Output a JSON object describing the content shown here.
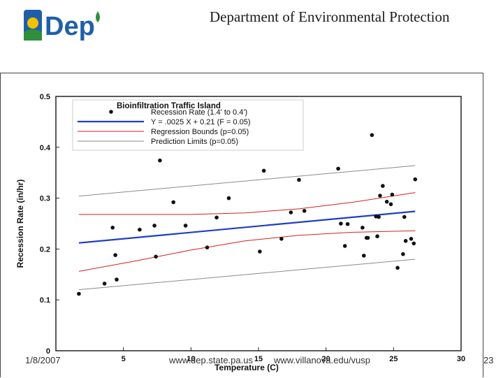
{
  "header": {
    "logo_text": "Dep",
    "title": "Department of Environmental Protection"
  },
  "footer": {
    "date": "1/8/2007",
    "url_left": "www.dep.state.pa.us",
    "url_right": "www.villanova.edu/vusp",
    "page_number": "23"
  },
  "colors": {
    "logo_blue": "#1f5fa8",
    "logo_green": "#2f8f3a",
    "fit_line": "#1f3fbf",
    "regression_bounds": "#d42020",
    "prediction_limits": "#8a8a8a",
    "points": "#111111"
  },
  "chart_data": {
    "type": "scatter",
    "title": "Bioinfiltration Traffic Island",
    "xlabel": "Temperature (C)",
    "ylabel": "Recession Rate (in/hr)",
    "xlim": [
      0,
      30
    ],
    "ylim": [
      0,
      0.5
    ],
    "x_ticks": [
      5,
      10,
      15,
      20,
      25,
      30
    ],
    "x_tick_labels": [
      "5",
      "10",
      "15",
      "20",
      "25",
      "30"
    ],
    "y_ticks": [
      0,
      0.1,
      0.2,
      0.3,
      0.4,
      0.5
    ],
    "y_tick_labels": [
      "0",
      "0.1",
      "0.2",
      "0.3",
      "0.4",
      "0.5"
    ],
    "grid": false,
    "legend_position": "top-left",
    "legend": [
      {
        "label": "Recession Rate (1.4' to 0.4')",
        "kind": "point"
      },
      {
        "label": "Y = .0025 X + 0.21 (F = 0.05)",
        "kind": "fit"
      },
      {
        "label": "Regression Bounds (p=0.05)",
        "kind": "bounds"
      },
      {
        "label": "Prediction Limits (p=0.05)",
        "kind": "limits"
      }
    ],
    "points": [
      {
        "x": 1.7,
        "y": 0.112
      },
      {
        "x": 3.6,
        "y": 0.132
      },
      {
        "x": 4.0,
        "y": 0.465
      },
      {
        "x": 4.2,
        "y": 0.242
      },
      {
        "x": 4.4,
        "y": 0.188
      },
      {
        "x": 4.5,
        "y": 0.14
      },
      {
        "x": 6.2,
        "y": 0.238
      },
      {
        "x": 7.3,
        "y": 0.246
      },
      {
        "x": 7.4,
        "y": 0.185
      },
      {
        "x": 7.7,
        "y": 0.374
      },
      {
        "x": 8.7,
        "y": 0.292
      },
      {
        "x": 9.6,
        "y": 0.246
      },
      {
        "x": 11.2,
        "y": 0.203
      },
      {
        "x": 11.9,
        "y": 0.262
      },
      {
        "x": 12.8,
        "y": 0.3
      },
      {
        "x": 15.1,
        "y": 0.195
      },
      {
        "x": 15.4,
        "y": 0.354
      },
      {
        "x": 16.7,
        "y": 0.22
      },
      {
        "x": 17.4,
        "y": 0.272
      },
      {
        "x": 18.0,
        "y": 0.336
      },
      {
        "x": 18.4,
        "y": 0.275
      },
      {
        "x": 20.9,
        "y": 0.358
      },
      {
        "x": 21.1,
        "y": 0.25
      },
      {
        "x": 21.4,
        "y": 0.206
      },
      {
        "x": 21.6,
        "y": 0.249
      },
      {
        "x": 22.7,
        "y": 0.242
      },
      {
        "x": 22.8,
        "y": 0.187
      },
      {
        "x": 23.0,
        "y": 0.222
      },
      {
        "x": 23.1,
        "y": 0.222
      },
      {
        "x": 23.4,
        "y": 0.424
      },
      {
        "x": 23.7,
        "y": 0.264
      },
      {
        "x": 23.8,
        "y": 0.225
      },
      {
        "x": 23.9,
        "y": 0.263
      },
      {
        "x": 24.0,
        "y": 0.305
      },
      {
        "x": 24.2,
        "y": 0.324
      },
      {
        "x": 24.5,
        "y": 0.293
      },
      {
        "x": 24.8,
        "y": 0.288
      },
      {
        "x": 24.9,
        "y": 0.307
      },
      {
        "x": 25.3,
        "y": 0.163
      },
      {
        "x": 25.7,
        "y": 0.19
      },
      {
        "x": 25.8,
        "y": 0.263
      },
      {
        "x": 25.9,
        "y": 0.216
      },
      {
        "x": 26.3,
        "y": 0.22
      },
      {
        "x": 26.5,
        "y": 0.211
      },
      {
        "x": 26.6,
        "y": 0.337
      }
    ],
    "fit_line": {
      "x": [
        1.7,
        26.6
      ],
      "y": [
        0.212,
        0.274
      ]
    },
    "regression_bounds": [
      {
        "x": [
          1.7,
          6,
          10,
          14,
          18,
          22,
          26.6
        ],
        "y": [
          0.268,
          0.268,
          0.268,
          0.271,
          0.279,
          0.292,
          0.311
        ]
      },
      {
        "x": [
          1.7,
          6,
          10,
          14,
          18,
          22,
          26.6
        ],
        "y": [
          0.156,
          0.177,
          0.198,
          0.216,
          0.227,
          0.233,
          0.236
        ]
      }
    ],
    "prediction_limits": [
      {
        "x": [
          1.7,
          26.6
        ],
        "y": [
          0.304,
          0.364
        ]
      },
      {
        "x": [
          1.7,
          26.6
        ],
        "y": [
          0.12,
          0.18
        ]
      }
    ]
  }
}
